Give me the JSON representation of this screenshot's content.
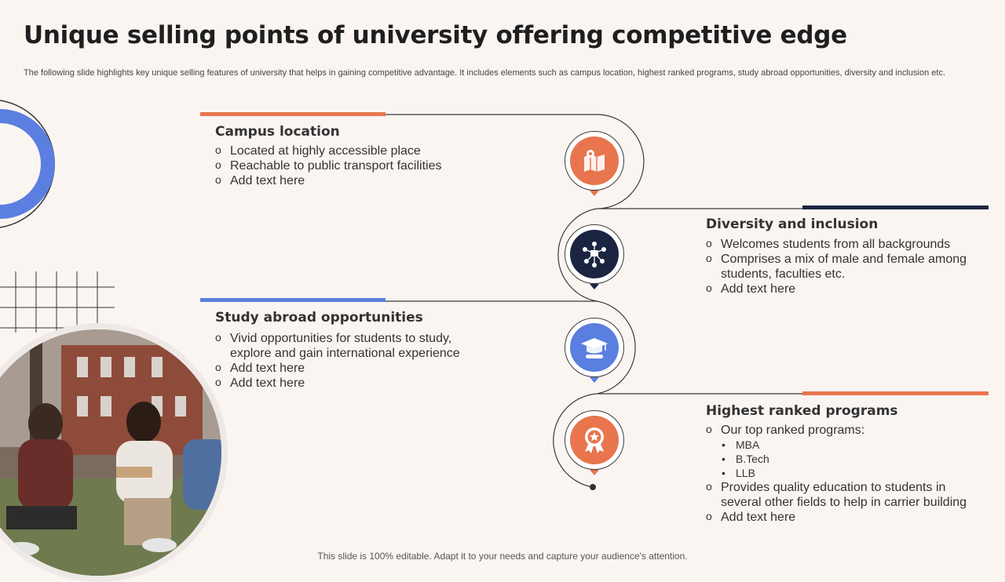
{
  "title": "Unique selling points of university offering competitive edge",
  "subtitle": "The following slide highlights key unique selling features of university that helps in gaining competitive advantage. It includes elements such as campus location, highest ranked programs, study abroad opportunities, diversity and inclusion etc.",
  "colors": {
    "orange": "#e8754e",
    "navy": "#1b2440",
    "blue": "#5b7fe0",
    "background": "#fbf5f2"
  },
  "sections": {
    "campus": {
      "title": "Campus location",
      "icon": "map-location-icon",
      "items": [
        "Located at highly accessible place",
        "Reachable to public transport facilities",
        "Add text here"
      ]
    },
    "diversity": {
      "title": "Diversity and inclusion",
      "icon": "team-network-icon",
      "items": [
        "Welcomes students from all backgrounds",
        "Comprises a mix of male and female among students, faculties etc.",
        "Add text here"
      ]
    },
    "abroad": {
      "title": "Study abroad opportunities",
      "icon": "graduation-cap-icon",
      "items": [
        "Vivid opportunities for students to study, explore and gain international experience",
        "Add text here",
        "Add text here"
      ]
    },
    "programs": {
      "title": "Highest ranked programs",
      "icon": "award-badge-icon",
      "item_intro": "Our top ranked programs:",
      "sub_items": [
        "MBA",
        "B.Tech",
        "LLB"
      ],
      "items": [
        "Provides quality education to students in several other fields to help in carrier building",
        "Add text here"
      ]
    }
  },
  "footer": "This slide is 100% editable. Adapt it to your needs and capture your audience's attention."
}
